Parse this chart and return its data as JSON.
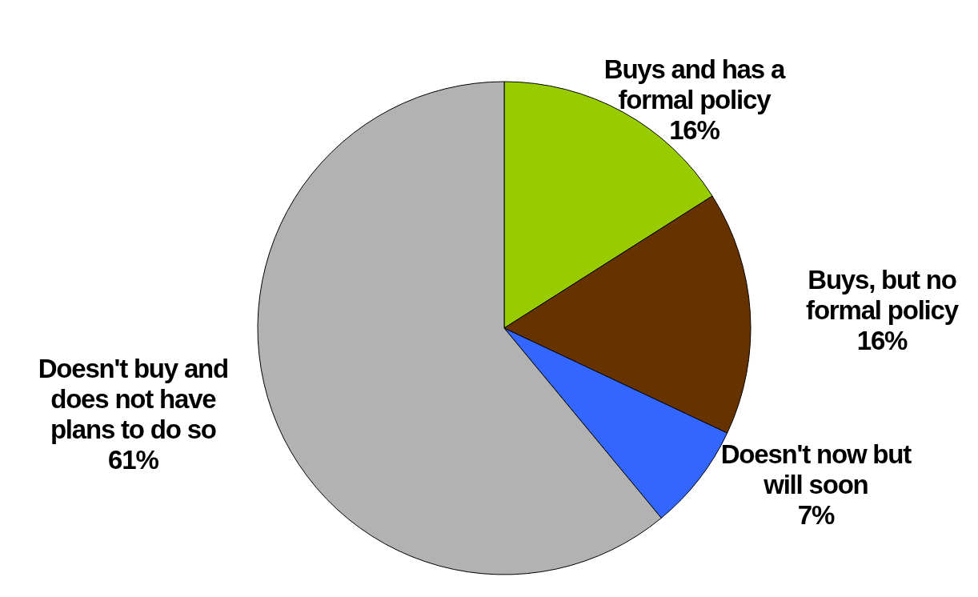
{
  "chart_data": {
    "type": "pie",
    "categories": [
      "Buys and has a formal policy",
      "Buys, but no formal policy",
      "Doesn't now but will soon",
      "Doesn't buy and does not have plans to do so"
    ],
    "values": [
      16,
      16,
      7,
      61
    ],
    "colors": [
      "#99cc00",
      "#663300",
      "#3366ff",
      "#b2b2b2"
    ],
    "value_labels": [
      "16%",
      "16%",
      "7%",
      "61%"
    ]
  }
}
